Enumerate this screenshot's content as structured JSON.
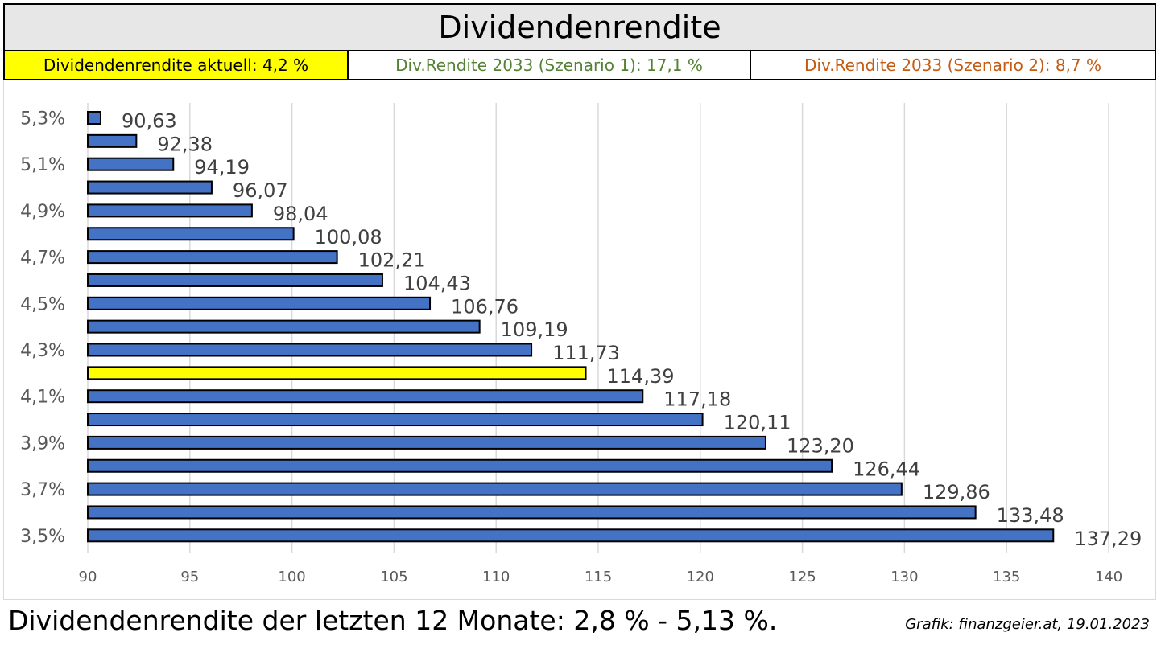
{
  "header": {
    "title": "Dividendenrendite",
    "info_current": "Dividendenrendite aktuell: 4,2 %",
    "info_scenario1": "Div.Rendite 2033 (Szenario 1): 17,1 %",
    "info_scenario2": "Div.Rendite 2033 (Szenario 2): 8,7 %"
  },
  "colors": {
    "bar": "#4472c4",
    "highlight_bar": "#ffff00",
    "scenario1": "#548235",
    "scenario2": "#c55a11",
    "grid": "#d9d9d9"
  },
  "chart_data": {
    "type": "bar",
    "orientation": "horizontal",
    "title": "",
    "xlabel": "",
    "ylabel": "",
    "xlim": [
      90,
      140
    ],
    "x_ticks": [
      "90",
      "95",
      "100",
      "105",
      "110",
      "115",
      "120",
      "125",
      "130",
      "135",
      "140"
    ],
    "grid": "vertical",
    "categories": [
      "5,3%",
      "",
      "5,1%",
      "",
      "4,9%",
      "",
      "4,7%",
      "",
      "4,5%",
      "",
      "4,3%",
      "",
      "4,1%",
      "",
      "3,9%",
      "",
      "3,7%",
      "",
      "3,5%"
    ],
    "values": [
      90.63,
      92.38,
      94.19,
      96.07,
      98.04,
      100.08,
      102.21,
      104.43,
      106.76,
      109.19,
      111.73,
      114.39,
      117.18,
      120.11,
      123.2,
      126.44,
      129.86,
      133.48,
      137.29
    ],
    "data_labels": [
      "90,63",
      "92,38",
      "94,19",
      "96,07",
      "98,04",
      "100,08",
      "102,21",
      "104,43",
      "106,76",
      "109,19",
      "111,73",
      "114,39",
      "117,18",
      "120,11",
      "123,20",
      "126,44",
      "129,86",
      "133,48",
      "137,29"
    ],
    "highlight_index": 11
  },
  "footer": {
    "summary": "Dividendenrendite der letzten 12 Monate: 2,8 % - 5,13 %.",
    "credit": "Grafik: finanzgeier.at, 19.01.2023"
  }
}
